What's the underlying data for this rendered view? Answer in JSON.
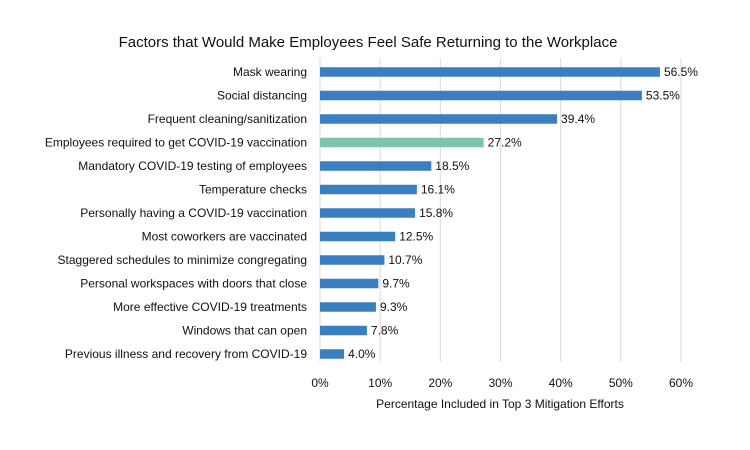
{
  "chart_data": {
    "type": "bar",
    "orientation": "horizontal",
    "title": "Factors that Would Make Employees Feel Safe Returning to the Workplace",
    "xlabel": "Percentage Included in Top 3 Mitigation Efforts",
    "ylabel": "",
    "xlim": [
      0,
      60
    ],
    "x_ticks": [
      0,
      10,
      20,
      30,
      40,
      50,
      60
    ],
    "x_tick_labels": [
      "0%",
      "10%",
      "20%",
      "30%",
      "40%",
      "50%",
      "60%"
    ],
    "value_suffix": "%",
    "grid": "vertical",
    "legend": "none",
    "default_color": "#3a7fc1",
    "highlight_color": "#7dc4b0",
    "categories": [
      "Mask wearing",
      "Social distancing",
      "Frequent cleaning/sanitization",
      "Employees required to get COVID-19 vaccination",
      "Mandatory COVID-19 testing of employees",
      "Temperature checks",
      "Personally having a COVID-19 vaccination",
      "Most coworkers are vaccinated",
      "Staggered schedules to minimize congregating",
      "Personal workspaces with doors that close",
      "More effective COVID-19 treatments",
      "Windows that can open",
      "Previous illness and recovery from COVID-19"
    ],
    "values": [
      56.5,
      53.5,
      39.4,
      27.2,
      18.5,
      16.1,
      15.8,
      12.5,
      10.7,
      9.7,
      9.3,
      7.8,
      4.0
    ],
    "value_labels": [
      "56.5%",
      "53.5%",
      "39.4%",
      "27.2%",
      "18.5%",
      "16.1%",
      "15.8%",
      "12.5%",
      "10.7%",
      "9.7%",
      "9.3%",
      "7.8%",
      "4.0%"
    ],
    "highlight_index": 3
  }
}
